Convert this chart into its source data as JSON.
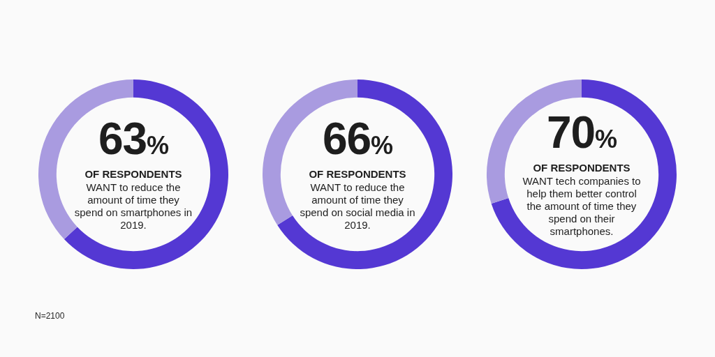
{
  "chart_data": [
    {
      "type": "donut",
      "categories": [
        null,
        null
      ],
      "values": [
        63,
        37
      ],
      "colors": [
        "#5438d3",
        "#a99be0"
      ],
      "value_labels": [
        "63%",
        null
      ],
      "legend": false,
      "annotations": [
        "OF RESPONDENTS",
        "WANT to reduce the amount of time they spend on smartphones in 2019.",
        "N=2100"
      ]
    },
    {
      "type": "donut",
      "categories": [
        null,
        null
      ],
      "values": [
        66,
        34
      ],
      "colors": [
        "#5438d3",
        "#a99be0"
      ],
      "value_labels": [
        "66%",
        null
      ],
      "legend": false,
      "annotations": [
        "OF RESPONDENTS",
        "WANT to reduce the amount of time they spend on social media in 2019."
      ]
    },
    {
      "type": "donut",
      "categories": [
        null,
        null
      ],
      "values": [
        70,
        30
      ],
      "colors": [
        "#5438d3",
        "#a99be0"
      ],
      "value_labels": [
        "70%",
        null
      ],
      "legend": false,
      "annotations": [
        "OF RESPONDENTS",
        "WANT tech companies to help them better control the amount of time they spend on their smartphones."
      ]
    }
  ]
}
